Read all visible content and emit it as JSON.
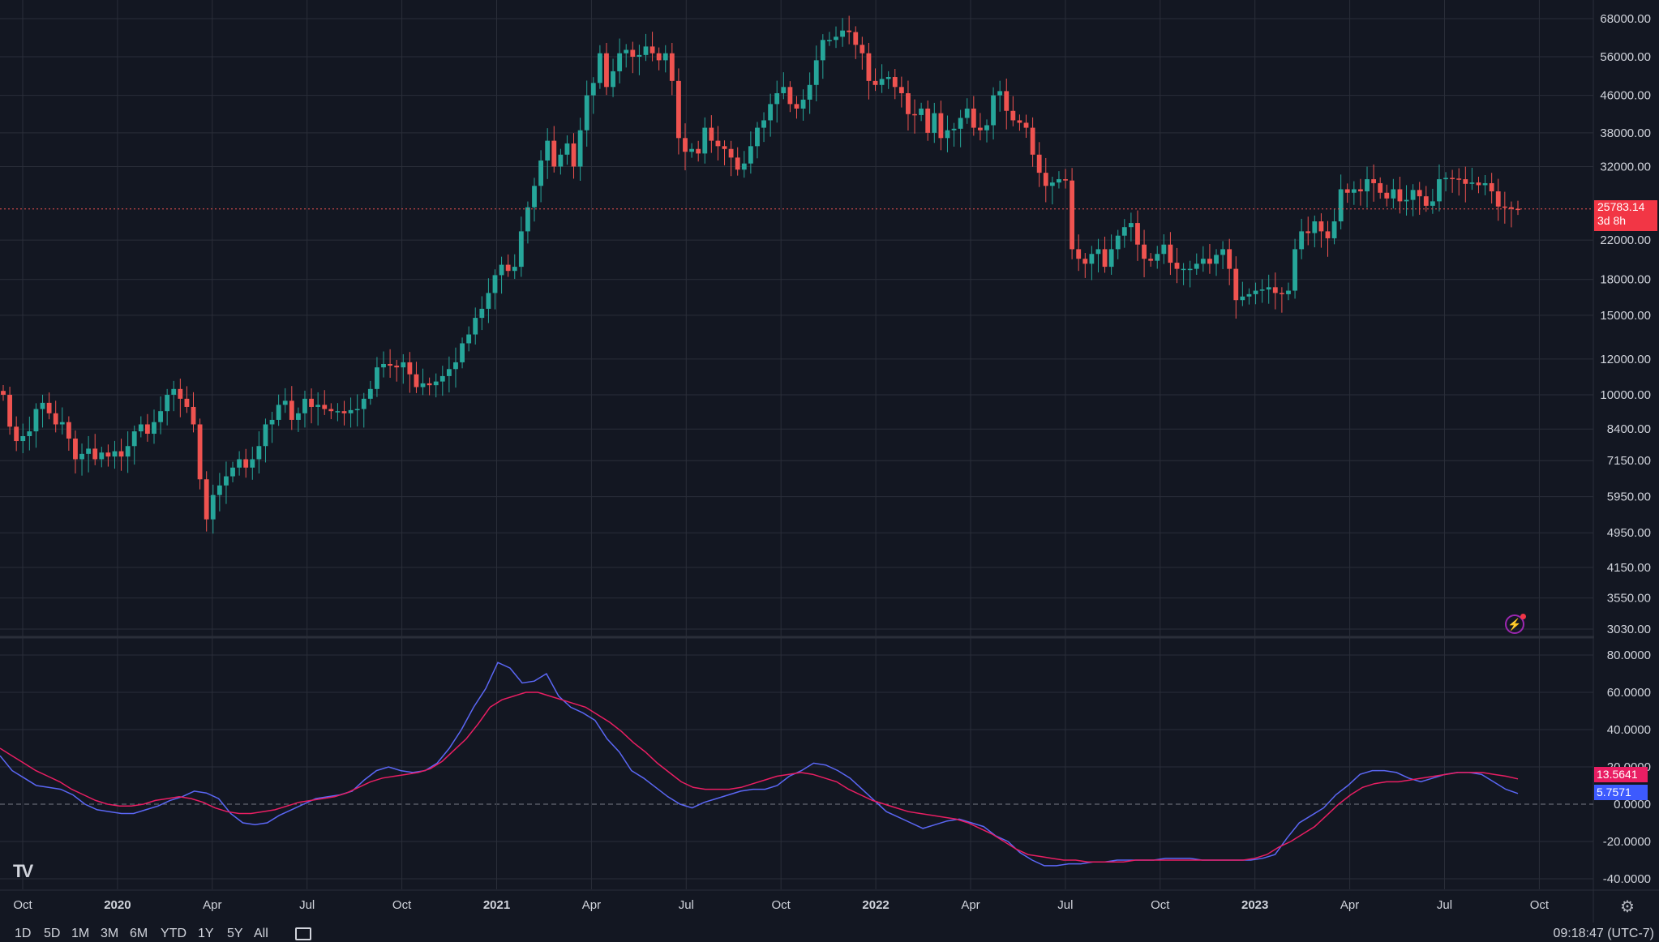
{
  "chart_data": [
    {
      "type": "candlestick",
      "title": "",
      "yscale": "log",
      "ylim": [
        2900,
        70000
      ],
      "y_ticks": [
        "68000.00",
        "56000.00",
        "46000.00",
        "38000.00",
        "32000.00",
        "22000.00",
        "18000.00",
        "15000.00",
        "12000.00",
        "10000.00",
        "8400.00",
        "7150.00",
        "5950.00",
        "4950.00",
        "4150.00",
        "3550.00",
        "3030.00"
      ],
      "last_price": 25783.14,
      "last_price_label": "25783.14",
      "countdown_label": "3d 8h",
      "candles_close": [
        10000,
        8500,
        7900,
        8100,
        8300,
        9300,
        9600,
        9100,
        8600,
        8700,
        8000,
        7200,
        7400,
        7600,
        7200,
        7450,
        7300,
        7500,
        7300,
        7700,
        8300,
        8600,
        8200,
        8700,
        9200,
        10000,
        10300,
        9800,
        9400,
        8600,
        6500,
        5300,
        6000,
        6300,
        6600,
        6900,
        7200,
        6900,
        7200,
        7700,
        8600,
        8800,
        9500,
        9700,
        8800,
        9100,
        9800,
        9400,
        9500,
        9300,
        9200,
        9200,
        9100,
        9250,
        9300,
        9800,
        10300,
        11500,
        11700,
        11600,
        11500,
        11800,
        11100,
        10400,
        10600,
        10500,
        10700,
        11000,
        11400,
        11800,
        13000,
        13600,
        14800,
        15500,
        16800,
        18400,
        19400,
        18800,
        19200,
        23000,
        26000,
        29000,
        33000,
        36500,
        32000,
        34000,
        36000,
        32000,
        38500,
        46000,
        49000,
        57000,
        48000,
        52000,
        57000,
        58000,
        56000,
        56500,
        59000,
        57000,
        55000,
        57000,
        49500,
        37000,
        34500,
        35000,
        34200,
        39000,
        36500,
        35500,
        35000,
        33500,
        31500,
        32500,
        35500,
        39000,
        40500,
        44000,
        46500,
        48000,
        44000,
        43000,
        45000,
        48500,
        55000,
        61000,
        61000,
        62000,
        64000,
        63500,
        59500,
        57000,
        49500,
        48500,
        50000,
        50500,
        48000,
        46500,
        41800,
        41600,
        43000,
        38000,
        42000,
        37000,
        38500,
        38800,
        41000,
        43000,
        39000,
        38500,
        39500,
        46000,
        47000,
        42500,
        40500,
        40000,
        39000,
        34000,
        31000,
        29000,
        29500,
        30000,
        29800,
        21000,
        20000,
        19500,
        20500,
        21000,
        19200,
        21000,
        22500,
        23500,
        24000,
        21500,
        20000,
        19800,
        20500,
        21500,
        19600,
        19000,
        19000,
        19000,
        19500,
        20000,
        19500,
        20400,
        21000,
        19000,
        16200,
        16500,
        16700,
        17000,
        17100,
        17300,
        16800,
        16700,
        17000,
        21000,
        23000,
        22800,
        24200,
        23000,
        22200,
        24200,
        28500,
        28000,
        28500,
        28200,
        30000,
        29400,
        28000,
        27200,
        28500,
        26800,
        27000,
        28400,
        27500,
        26200,
        26800,
        30000,
        30200,
        30100,
        30000,
        29300,
        29500,
        29100,
        29400,
        28200,
        26100,
        26000,
        25800,
        25783
      ],
      "candles_color": "teal up / red down",
      "x_ticks": [
        "Oct",
        "2020",
        "Apr",
        "Jul",
        "Oct",
        "2021",
        "Apr",
        "Jul",
        "Oct",
        "2022",
        "Apr",
        "Jul",
        "Oct",
        "2023",
        "Apr",
        "Jul",
        "Oct"
      ]
    },
    {
      "type": "line",
      "title": "",
      "ylim": [
        -45,
        88
      ],
      "y_ticks": [
        "80.0000",
        "60.0000",
        "40.0000",
        "20.0000",
        "0.0000",
        "-20.0000",
        "-40.0000"
      ],
      "series": [
        {
          "color": "#5b67f5",
          "label": "5.7571",
          "values": [
            26,
            18,
            14,
            10,
            9,
            8,
            5,
            0,
            -3,
            -4,
            -5,
            -5,
            -3,
            -1,
            2,
            4,
            7,
            6,
            3,
            -5,
            -10,
            -11,
            -10,
            -6,
            -3,
            0,
            3,
            4,
            5,
            7,
            13,
            18,
            20,
            18,
            17,
            18,
            22,
            30,
            40,
            52,
            62,
            76,
            73,
            65,
            66,
            70,
            58,
            52,
            49,
            45,
            35,
            28,
            18,
            14,
            9,
            4,
            0,
            -2,
            1,
            3,
            5,
            7,
            8,
            8,
            10,
            15,
            18,
            22,
            21,
            18,
            14,
            8,
            2,
            -4,
            -7,
            -10,
            -13,
            -11,
            -9,
            -8,
            -10,
            -12,
            -17,
            -20,
            -26,
            -30,
            -33,
            -33,
            -32,
            -32,
            -31,
            -31,
            -30,
            -30,
            -30,
            -30,
            -29,
            -29,
            -29,
            -30,
            -30,
            -30,
            -30,
            -30,
            -29,
            -27,
            -18,
            -10,
            -6,
            -2,
            5,
            10,
            16,
            18,
            18,
            17,
            14,
            12,
            14,
            16,
            17,
            17,
            16,
            12,
            8,
            5.76
          ]
        },
        {
          "color": "#e91e63",
          "label": "13.5641",
          "values": [
            30,
            26,
            22,
            18,
            15,
            12,
            8,
            5,
            2,
            0,
            -1,
            -1,
            0,
            2,
            3,
            4,
            3,
            1,
            -2,
            -4,
            -5,
            -5,
            -4,
            -3,
            -1,
            1,
            2,
            3,
            4,
            6,
            9,
            12,
            14,
            15,
            16,
            17,
            19,
            23,
            29,
            35,
            43,
            52,
            56,
            58,
            60,
            60,
            58,
            56,
            54,
            52,
            48,
            44,
            39,
            33,
            28,
            22,
            17,
            12,
            9,
            8,
            8,
            8,
            9,
            11,
            13,
            15,
            16,
            17,
            16,
            14,
            12,
            8,
            5,
            2,
            0,
            -2,
            -4,
            -5,
            -6,
            -7,
            -8,
            -10,
            -13,
            -16,
            -20,
            -24,
            -27,
            -28,
            -29,
            -30,
            -30,
            -31,
            -31,
            -31,
            -31,
            -30,
            -30,
            -30,
            -30,
            -30,
            -30,
            -30,
            -30,
            -30,
            -30,
            -29,
            -27,
            -23,
            -20,
            -16,
            -12,
            -6,
            0,
            5,
            9,
            11,
            12,
            12,
            13,
            14,
            15,
            16,
            17,
            17,
            17,
            16,
            15,
            13.56
          ]
        }
      ]
    }
  ],
  "bottom_bar": {
    "ranges": [
      "1D",
      "5D",
      "1M",
      "3M",
      "6M",
      "YTD",
      "1Y",
      "5Y",
      "All"
    ],
    "clock": "09:18:47 (UTC-7)"
  },
  "colors": {
    "background": "#131722",
    "grid": "#2a2e39",
    "up": "#26a69a",
    "down": "#ef5350",
    "macd": "#5b67f5",
    "signal": "#e91e63"
  }
}
